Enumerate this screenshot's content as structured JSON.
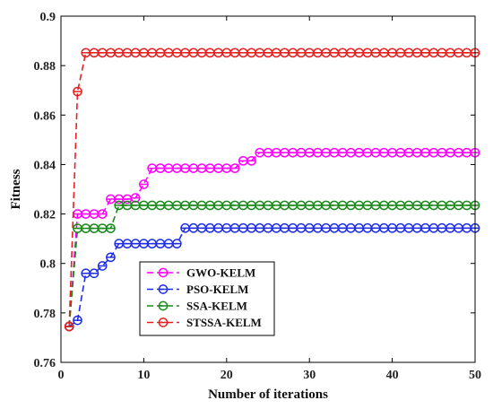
{
  "chart_data": {
    "type": "line",
    "title": "",
    "xlabel": "Number of iterations",
    "ylabel": "Fitness",
    "xlim": [
      0,
      50
    ],
    "ylim": [
      0.76,
      0.9
    ],
    "xticks": [
      0,
      10,
      20,
      30,
      40,
      50
    ],
    "yticks": [
      0.76,
      0.78,
      0.8,
      0.82,
      0.84,
      0.86,
      0.88,
      0.9
    ],
    "ytick_labels": [
      "0.76",
      "0.78",
      "0.8",
      "0.82",
      "0.84",
      "0.86",
      "0.88",
      "0.9"
    ],
    "grid": false,
    "legend_position": "lower-left",
    "x": [
      1,
      2,
      3,
      4,
      5,
      6,
      7,
      8,
      9,
      10,
      11,
      12,
      13,
      14,
      15,
      16,
      17,
      18,
      19,
      20,
      21,
      22,
      23,
      24,
      25,
      26,
      27,
      28,
      29,
      30,
      31,
      32,
      33,
      34,
      35,
      36,
      37,
      38,
      39,
      40,
      41,
      42,
      43,
      44,
      45,
      46,
      47,
      48,
      49,
      50
    ],
    "series": [
      {
        "name": "GWO-KELM",
        "color": "#ff00ff",
        "values": [
          0.7745,
          0.82,
          0.82,
          0.82,
          0.82,
          0.826,
          0.826,
          0.826,
          0.8265,
          0.832,
          0.8385,
          0.8385,
          0.8385,
          0.8385,
          0.8385,
          0.8385,
          0.8385,
          0.8385,
          0.8385,
          0.8385,
          0.8385,
          0.8415,
          0.8415,
          0.8448,
          0.8448,
          0.8448,
          0.8448,
          0.8448,
          0.8448,
          0.8448,
          0.8448,
          0.8448,
          0.8448,
          0.8448,
          0.8448,
          0.8448,
          0.8448,
          0.8448,
          0.8448,
          0.8448,
          0.8448,
          0.8448,
          0.8448,
          0.8448,
          0.8448,
          0.8448,
          0.8448,
          0.8448,
          0.8448,
          0.8448
        ]
      },
      {
        "name": "PSO-KELM",
        "color": "#1f2ee6",
        "values": [
          0.7745,
          0.777,
          0.796,
          0.796,
          0.799,
          0.8025,
          0.808,
          0.808,
          0.808,
          0.808,
          0.808,
          0.808,
          0.808,
          0.808,
          0.8143,
          0.8143,
          0.8143,
          0.8143,
          0.8143,
          0.8143,
          0.8143,
          0.8143,
          0.8143,
          0.8143,
          0.8143,
          0.8143,
          0.8143,
          0.8143,
          0.8143,
          0.8143,
          0.8143,
          0.8143,
          0.8143,
          0.8143,
          0.8143,
          0.8143,
          0.8143,
          0.8143,
          0.8143,
          0.8143,
          0.8143,
          0.8143,
          0.8143,
          0.8143,
          0.8143,
          0.8143,
          0.8143,
          0.8143,
          0.8143,
          0.8143
        ]
      },
      {
        "name": "SSA-KELM",
        "color": "#1a8a1a",
        "values": [
          0.7745,
          0.8142,
          0.8142,
          0.8142,
          0.8142,
          0.8142,
          0.8235,
          0.8235,
          0.8235,
          0.8235,
          0.8235,
          0.8235,
          0.8235,
          0.8235,
          0.8235,
          0.8235,
          0.8235,
          0.8235,
          0.8235,
          0.8235,
          0.8235,
          0.8235,
          0.8235,
          0.8235,
          0.8235,
          0.8235,
          0.8235,
          0.8235,
          0.8235,
          0.8235,
          0.8235,
          0.8235,
          0.8235,
          0.8235,
          0.8235,
          0.8235,
          0.8235,
          0.8235,
          0.8235,
          0.8235,
          0.8235,
          0.8235,
          0.8235,
          0.8235,
          0.8235,
          0.8235,
          0.8235,
          0.8235,
          0.8235,
          0.8235
        ]
      },
      {
        "name": "STSSA-KELM",
        "color": "#e62020",
        "values": [
          0.7745,
          0.8695,
          0.8852,
          0.8852,
          0.8852,
          0.8852,
          0.8852,
          0.8852,
          0.8852,
          0.8852,
          0.8852,
          0.8852,
          0.8852,
          0.8852,
          0.8852,
          0.8852,
          0.8852,
          0.8852,
          0.8852,
          0.8852,
          0.8852,
          0.8852,
          0.8852,
          0.8852,
          0.8852,
          0.8852,
          0.8852,
          0.8852,
          0.8852,
          0.8852,
          0.8852,
          0.8852,
          0.8852,
          0.8852,
          0.8852,
          0.8852,
          0.8852,
          0.8852,
          0.8852,
          0.8852,
          0.8852,
          0.8852,
          0.8852,
          0.8852,
          0.8852,
          0.8852,
          0.8852,
          0.8852,
          0.8852,
          0.8852
        ]
      }
    ]
  }
}
